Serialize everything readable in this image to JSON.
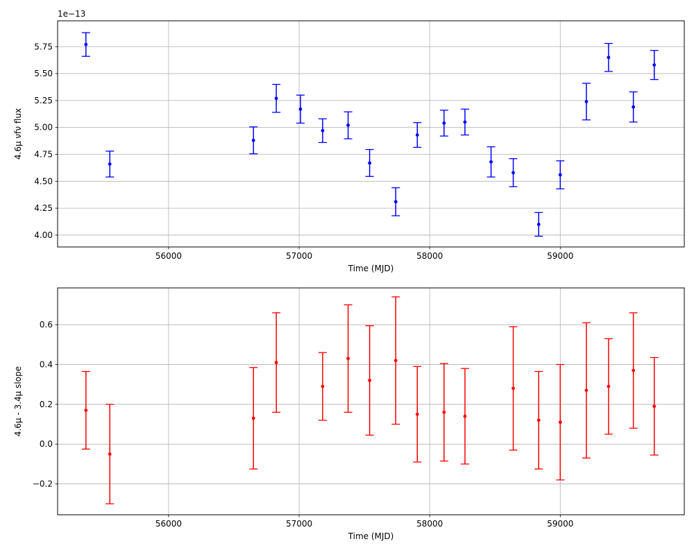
{
  "chart_data": [
    {
      "type": "scatter",
      "title": "",
      "xlabel": "Time (MJD)",
      "ylabel": "4.6μ νfν flux",
      "y_offset_text": "1e−13",
      "xlim": [
        55150,
        59950
      ],
      "ylim": [
        3.89,
        5.99
      ],
      "xticks": [
        56000,
        57000,
        58000,
        59000
      ],
      "xtick_labels": [
        "56000",
        "57000",
        "58000",
        "59000"
      ],
      "yticks": [
        4.0,
        4.25,
        4.5,
        4.75,
        5.0,
        5.25,
        5.5,
        5.75
      ],
      "ytick_labels": [
        "4.00",
        "4.25",
        "4.50",
        "4.75",
        "5.00",
        "5.25",
        "5.50",
        "5.75"
      ],
      "grid": true,
      "error_bars": true,
      "color": "#0000ff",
      "series": [
        {
          "x": [
            55367,
            55550,
            56650,
            56825,
            57010,
            57180,
            57375,
            57540,
            57740,
            57905,
            58110,
            58270,
            58470,
            58640,
            58835,
            59000,
            59200,
            59370,
            59560,
            59720
          ],
          "y": [
            5.77,
            4.66,
            4.88,
            5.27,
            5.17,
            4.97,
            5.02,
            4.67,
            4.31,
            4.93,
            5.04,
            5.05,
            4.68,
            4.58,
            4.1,
            4.56,
            5.24,
            5.65,
            5.19,
            5.58
          ],
          "yerr": [
            0.11,
            0.12,
            0.125,
            0.13,
            0.13,
            0.11,
            0.125,
            0.125,
            0.13,
            0.115,
            0.12,
            0.12,
            0.14,
            0.13,
            0.11,
            0.13,
            0.17,
            0.13,
            0.14,
            0.135
          ]
        }
      ]
    },
    {
      "type": "scatter",
      "title": "",
      "xlabel": "Time (MJD)",
      "ylabel": "4.6μ - 3.4μ slope",
      "xlim": [
        55150,
        59950
      ],
      "ylim": [
        -0.355,
        0.785
      ],
      "xticks": [
        56000,
        57000,
        58000,
        59000
      ],
      "xtick_labels": [
        "56000",
        "57000",
        "58000",
        "59000"
      ],
      "yticks": [
        -0.2,
        0.0,
        0.2,
        0.4,
        0.6
      ],
      "ytick_labels": [
        "−0.2",
        "0.0",
        "0.2",
        "0.4",
        "0.6"
      ],
      "grid": true,
      "error_bars": true,
      "color": "#ff0000",
      "series": [
        {
          "x": [
            55367,
            55550,
            56650,
            56825,
            57180,
            57375,
            57540,
            57740,
            57905,
            58110,
            58270,
            58640,
            58835,
            59000,
            59200,
            59370,
            59560,
            59720
          ],
          "y": [
            0.17,
            -0.05,
            0.13,
            0.41,
            0.29,
            0.43,
            0.32,
            0.42,
            0.15,
            0.16,
            0.14,
            0.28,
            0.12,
            0.11,
            0.27,
            0.29,
            0.37,
            0.19
          ],
          "yerr": [
            0.195,
            0.25,
            0.255,
            0.25,
            0.17,
            0.27,
            0.275,
            0.32,
            0.24,
            0.245,
            0.24,
            0.31,
            0.245,
            0.29,
            0.34,
            0.24,
            0.29,
            0.245
          ]
        }
      ]
    }
  ]
}
